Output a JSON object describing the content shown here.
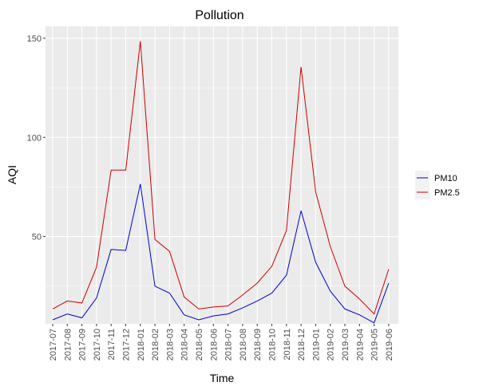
{
  "chart_data": {
    "type": "line",
    "title": "Pollution",
    "xlabel": "Time",
    "ylabel": "AQI",
    "x": [
      "2017-07",
      "2017-08",
      "2017-09",
      "2017-10",
      "2017-11",
      "2017-12",
      "2018-01",
      "2018-02",
      "2018-03",
      "2018-04",
      "2018-05",
      "2018-06",
      "2018-07",
      "2018-08",
      "2018-09",
      "2018-10",
      "2018-11",
      "2018-12",
      "2019-01",
      "2019-02",
      "2019-03",
      "2019-04",
      "2019-05",
      "2019-06"
    ],
    "ylim": [
      6,
      156
    ],
    "yticks": [
      50,
      100,
      150
    ],
    "grid": true,
    "legend": "right",
    "series": [
      {
        "name": "PM10",
        "color": "#0000cc",
        "values": [
          8,
          11,
          9,
          19,
          43.5,
          43,
          76.5,
          25,
          21.5,
          10.5,
          8,
          10,
          11,
          14,
          17.5,
          21.5,
          30.5,
          63,
          37,
          22.5,
          13.5,
          10.5,
          6.5,
          26.5
        ]
      },
      {
        "name": "PM2.5",
        "color": "#cc0000",
        "values": [
          13.5,
          17.5,
          16.5,
          34.5,
          83.5,
          83.5,
          148.5,
          48.5,
          42.5,
          19.5,
          13.5,
          14.5,
          15,
          20.5,
          26.5,
          35,
          53,
          135.5,
          72.5,
          45,
          25,
          18.5,
          11,
          33.5
        ]
      }
    ]
  }
}
